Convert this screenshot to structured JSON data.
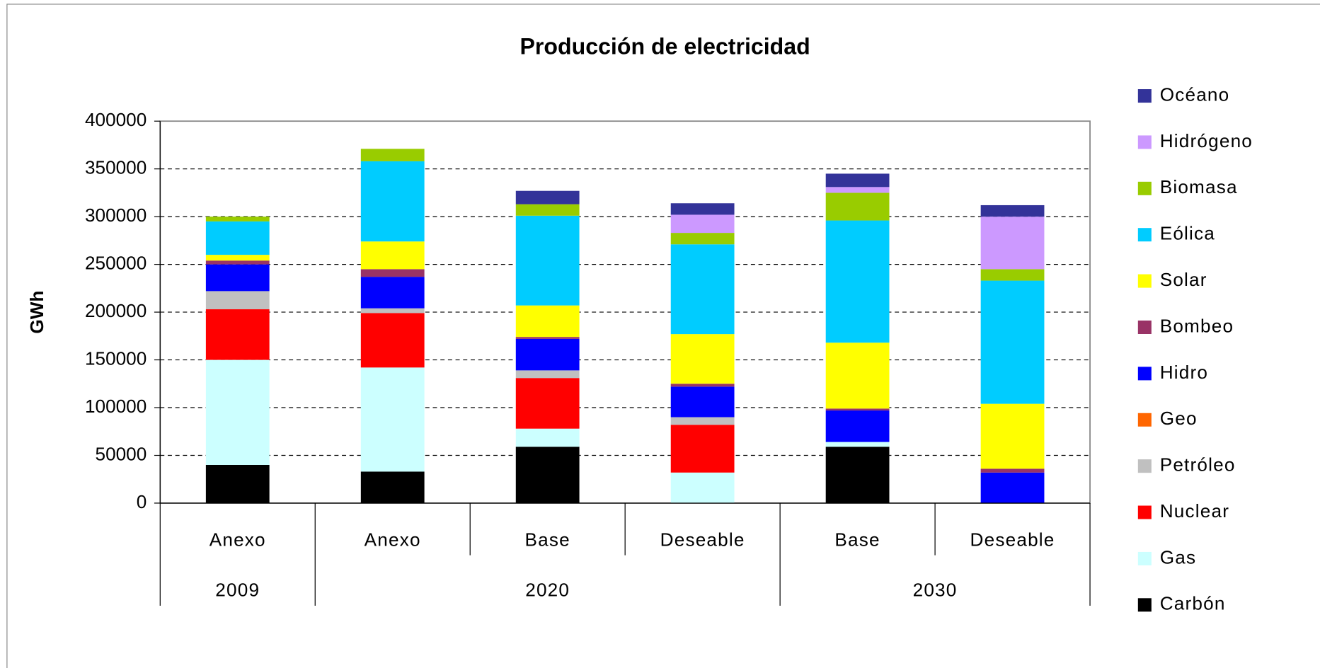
{
  "chart_data": {
    "type": "stacked_bar",
    "title": "Producción de electricidad",
    "y_label": "GWh",
    "groups": [
      {
        "label": "2009",
        "categories": [
          "Anexo"
        ]
      },
      {
        "label": "2020",
        "categories": [
          "Anexo",
          "Base",
          "Deseable"
        ]
      },
      {
        "label": "2030",
        "categories": [
          "Base",
          "Deseable"
        ]
      }
    ],
    "series": [
      {
        "name": "Carbón",
        "color": "#000000",
        "values": [
          40000,
          33000,
          59000,
          0,
          59000,
          0
        ]
      },
      {
        "name": "Gas",
        "color": "#ccffff",
        "values": [
          110000,
          109000,
          19000,
          32000,
          5000,
          0
        ]
      },
      {
        "name": "Nuclear",
        "color": "#ff0000",
        "values": [
          53000,
          57000,
          53000,
          50000,
          0,
          0
        ]
      },
      {
        "name": "Petróleo",
        "color": "#c0c0c0",
        "values": [
          19000,
          5000,
          8000,
          8000,
          0,
          0
        ]
      },
      {
        "name": "Geo",
        "color": "#ff6600",
        "values": [
          0,
          0,
          0,
          0,
          0,
          0
        ]
      },
      {
        "name": "Hidro",
        "color": "#0000ff",
        "values": [
          28000,
          33000,
          33000,
          32000,
          33000,
          32000
        ]
      },
      {
        "name": "Bombeo",
        "color": "#993366",
        "values": [
          4000,
          8000,
          2000,
          3000,
          2000,
          4000
        ]
      },
      {
        "name": "Solar",
        "color": "#ffff00",
        "values": [
          6000,
          29000,
          33000,
          52000,
          69000,
          68000
        ]
      },
      {
        "name": "Eólica",
        "color": "#00ccff",
        "values": [
          35000,
          84000,
          94000,
          94000,
          128000,
          129000
        ]
      },
      {
        "name": "Biomasa",
        "color": "#99cc00",
        "values": [
          5000,
          13000,
          12000,
          12000,
          29000,
          12000
        ]
      },
      {
        "name": "Hidrógeno",
        "color": "#cc99ff",
        "values": [
          0,
          0,
          0,
          19000,
          6000,
          55000
        ]
      },
      {
        "name": "Océano",
        "color": "#333399",
        "values": [
          0,
          0,
          14000,
          12000,
          14000,
          12000
        ]
      }
    ],
    "ylim": [
      0,
      400000
    ],
    "yticks": [
      0,
      50000,
      100000,
      150000,
      200000,
      250000,
      300000,
      350000,
      400000
    ],
    "grid": true,
    "legend": "right"
  }
}
